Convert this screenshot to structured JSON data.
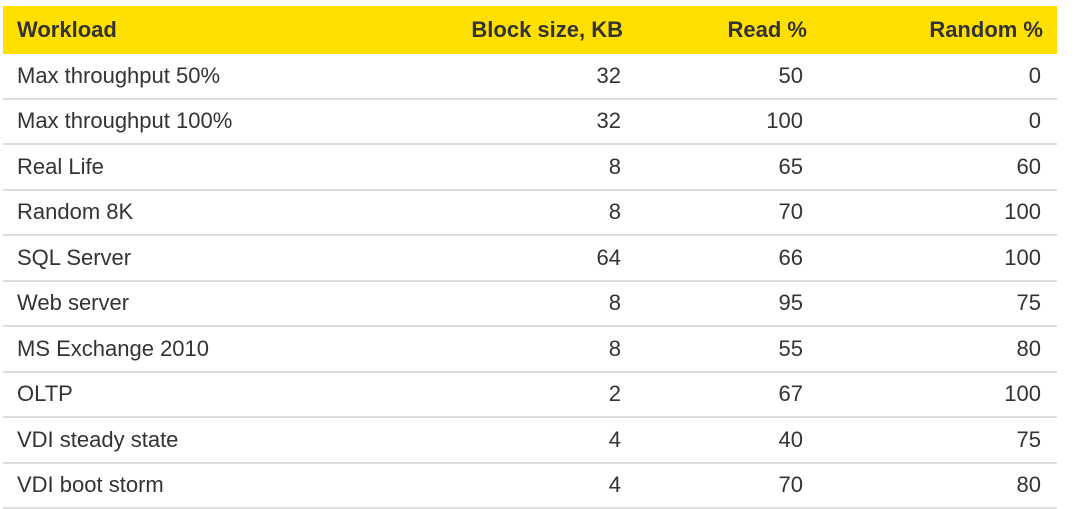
{
  "table": {
    "headers": [
      "Workload",
      "Block size, KB",
      "Read %",
      "Random %"
    ],
    "rows": [
      [
        "Max throughput 50%",
        "32",
        "50",
        "0"
      ],
      [
        "Max throughput 100%",
        "32",
        "100",
        "0"
      ],
      [
        "Real Life",
        "8",
        "65",
        "60"
      ],
      [
        "Random 8K",
        "8",
        "70",
        "100"
      ],
      [
        "SQL Server",
        "64",
        "66",
        "100"
      ],
      [
        "Web server",
        "8",
        "95",
        "75"
      ],
      [
        "MS Exchange 2010",
        "8",
        "55",
        "80"
      ],
      [
        "OLTP",
        "2",
        "67",
        "100"
      ],
      [
        "VDI steady state",
        "4",
        "40",
        "75"
      ],
      [
        "VDI boot storm",
        "4",
        "70",
        "80"
      ]
    ]
  },
  "colors": {
    "header_bg": "#FFE000",
    "text": "#333333",
    "row_divider": "#DDDDDD"
  }
}
